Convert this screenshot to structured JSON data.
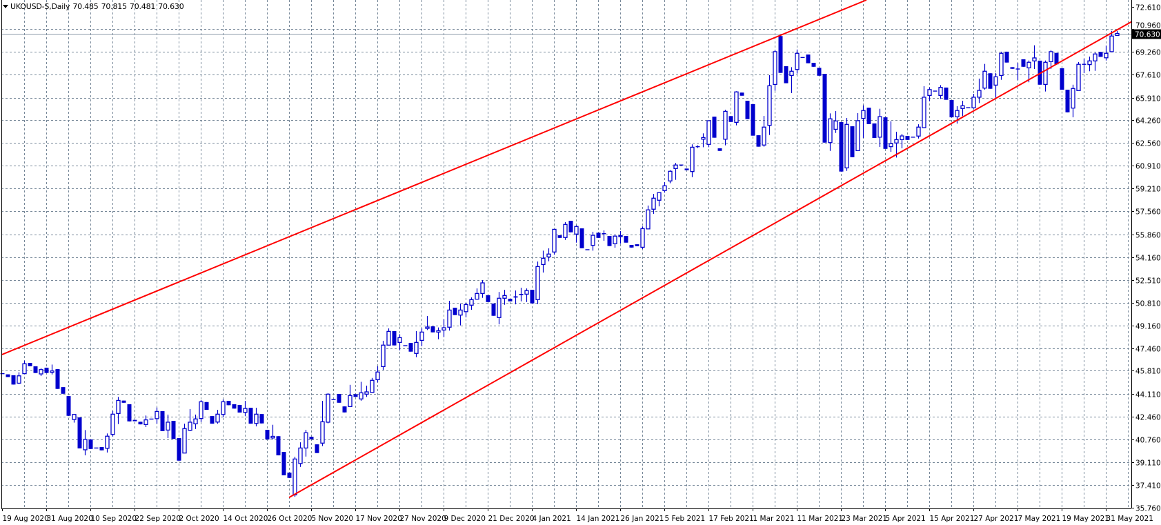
{
  "title": {
    "symbol_timeframe": "UKOUSD-S,Daily",
    "open": "70.485",
    "high": "70.815",
    "low": "70.481",
    "close": "70.630"
  },
  "chart_data": {
    "type": "candlestick",
    "title": "UKOUSD-S,Daily",
    "ylim": [
      35.76,
      72.61
    ],
    "grid": true,
    "y_tick_labels": [
      "72.610",
      "70.960",
      "69.260",
      "67.610",
      "65.910",
      "64.260",
      "62.560",
      "60.910",
      "59.210",
      "57.560",
      "55.860",
      "54.160",
      "52.510",
      "50.810",
      "49.160",
      "47.460",
      "45.810",
      "44.110",
      "42.460",
      "40.760",
      "39.110",
      "37.410",
      "35.760"
    ],
    "x_tick_labels": [
      "19 Aug 2020",
      "31 Aug 2020",
      "10 Sep 2020",
      "22 Sep 2020",
      "2 Oct 2020",
      "14 Oct 2020",
      "26 Oct 2020",
      "5 Nov 2020",
      "17 Nov 2020",
      "27 Nov 2020",
      "9 Dec 2020",
      "21 Dec 2020",
      "4 Jan 2021",
      "14 Jan 2021",
      "26 Jan 2021",
      "5 Feb 2021",
      "17 Feb 2021",
      "1 Mar 2021",
      "11 Mar 2021",
      "23 Mar 2021",
      "5 Apr 2021",
      "15 Apr 2021",
      "27 Apr 2021",
      "7 May 2021",
      "19 May 2021",
      "31 May 2021"
    ],
    "x_tick_every_bars": 8,
    "current_price": "70.630",
    "colors": {
      "candle": "#0000cd",
      "trendline": "#ff0000",
      "grid": "#778899",
      "price_line": "#8a99a8",
      "price_box": "#000000"
    },
    "candle_fields": [
      "open",
      "high",
      "low",
      "close"
    ],
    "candles": [
      [
        45.6,
        45.62,
        45.58,
        45.6
      ],
      [
        45.55,
        45.55,
        45.35,
        45.35
      ],
      [
        45.48,
        45.48,
        44.8,
        44.8
      ],
      [
        44.9,
        45.7,
        44.84,
        45.44
      ],
      [
        45.6,
        46.56,
        45.6,
        46.33
      ],
      [
        46.39,
        46.39,
        46.15,
        46.15
      ],
      [
        46.14,
        46.14,
        45.65,
        45.65
      ],
      [
        45.58,
        46.0,
        45.43,
        45.9
      ],
      [
        46.04,
        46.04,
        45.65,
        45.65
      ],
      [
        45.7,
        46.27,
        45.54,
        45.8
      ],
      [
        45.94,
        45.94,
        44.48,
        44.48
      ],
      [
        44.61,
        44.61,
        44.12,
        44.12
      ],
      [
        43.95,
        43.95,
        42.5,
        42.5
      ],
      [
        42.23,
        42.64,
        42.0,
        42.6
      ],
      [
        42.38,
        42.38,
        40.1,
        40.1
      ],
      [
        40.0,
        41.45,
        39.59,
        40.76
      ],
      [
        40.76,
        40.76,
        40.06,
        40.06
      ],
      [
        40.13,
        40.15,
        40.11,
        40.13
      ],
      [
        40.2,
        40.2,
        39.96,
        39.96
      ],
      [
        40.11,
        41.2,
        39.8,
        41.0
      ],
      [
        41.13,
        42.85,
        40.98,
        42.62
      ],
      [
        42.67,
        43.89,
        41.89,
        43.63
      ],
      [
        43.62,
        43.62,
        43.46,
        43.46
      ],
      [
        43.35,
        43.35,
        42.09,
        42.09
      ],
      [
        42.2,
        42.2,
        42.1,
        42.1
      ],
      [
        42.06,
        42.06,
        41.87,
        41.87
      ],
      [
        41.86,
        42.52,
        41.67,
        42.2
      ],
      [
        42.26,
        42.28,
        42.24,
        42.26
      ],
      [
        42.29,
        43.11,
        41.92,
        42.82
      ],
      [
        42.84,
        42.84,
        41.37,
        41.37
      ],
      [
        41.45,
        42.59,
        40.86,
        42.03
      ],
      [
        42.13,
        42.13,
        40.8,
        40.8
      ],
      [
        40.86,
        40.86,
        39.2,
        39.2
      ],
      [
        39.76,
        41.92,
        39.76,
        41.56
      ],
      [
        41.43,
        42.99,
        41.37,
        42.03
      ],
      [
        41.91,
        42.59,
        41.53,
        42.27
      ],
      [
        42.3,
        43.65,
        42.04,
        43.53
      ],
      [
        43.51,
        43.51,
        42.94,
        42.94
      ],
      [
        42.48,
        42.48,
        41.92,
        41.92
      ],
      [
        42.04,
        42.94,
        41.92,
        42.62
      ],
      [
        42.6,
        43.7,
        42.38,
        43.53
      ],
      [
        43.6,
        43.6,
        43.28,
        43.28
      ],
      [
        43.35,
        43.35,
        43.03,
        43.03
      ],
      [
        43.3,
        43.3,
        42.74,
        42.74
      ],
      [
        42.75,
        43.6,
        42.47,
        43.04
      ],
      [
        43.09,
        43.09,
        41.92,
        41.92
      ],
      [
        41.94,
        43.09,
        41.72,
        42.62
      ],
      [
        42.63,
        42.63,
        41.94,
        41.94
      ],
      [
        41.47,
        41.47,
        40.76,
        40.76
      ],
      [
        40.87,
        41.84,
        40.77,
        40.99
      ],
      [
        41.0,
        41.0,
        39.59,
        39.59
      ],
      [
        39.84,
        39.84,
        38.12,
        38.12
      ],
      [
        38.32,
        38.32,
        37.93,
        37.93
      ],
      [
        36.68,
        39.49,
        36.54,
        39.32
      ],
      [
        38.99,
        40.55,
        38.74,
        40.13
      ],
      [
        40.13,
        41.47,
        39.5,
        41.25
      ],
      [
        40.96,
        40.96,
        40.77,
        40.77
      ],
      [
        40.4,
        40.4,
        39.76,
        39.76
      ],
      [
        40.49,
        43.6,
        40.27,
        42.06
      ],
      [
        42.03,
        44.16,
        41.94,
        44.09
      ],
      [
        43.7,
        43.72,
        43.68,
        43.7
      ],
      [
        44.11,
        44.11,
        43.46,
        43.46
      ],
      [
        43.19,
        43.19,
        42.75,
        42.75
      ],
      [
        43.18,
        44.78,
        43.14,
        43.99
      ],
      [
        44.09,
        44.09,
        43.89,
        43.89
      ],
      [
        43.74,
        45.0,
        43.61,
        44.19
      ],
      [
        44.09,
        44.72,
        43.89,
        44.26
      ],
      [
        44.22,
        45.29,
        44.19,
        45.11
      ],
      [
        45.16,
        46.14,
        44.96,
        45.72
      ],
      [
        46.12,
        48.02,
        45.88,
        47.7
      ],
      [
        47.7,
        48.93,
        47.7,
        48.71
      ],
      [
        48.73,
        48.73,
        47.68,
        47.68
      ],
      [
        47.9,
        48.5,
        47.32,
        48.25
      ],
      [
        47.66,
        47.68,
        47.64,
        47.66
      ],
      [
        47.86,
        47.86,
        47.22,
        47.22
      ],
      [
        47.09,
        48.73,
        46.81,
        47.9
      ],
      [
        48.05,
        48.93,
        47.62,
        48.66
      ],
      [
        48.93,
        49.84,
        48.81,
        49.03
      ],
      [
        49.08,
        49.08,
        48.64,
        48.64
      ],
      [
        48.66,
        49.0,
        48.13,
        48.76
      ],
      [
        48.81,
        49.6,
        48.3,
        48.98
      ],
      [
        49.02,
        50.96,
        48.77,
        50.28
      ],
      [
        50.45,
        50.45,
        49.91,
        49.91
      ],
      [
        49.91,
        50.76,
        49.15,
        50.28
      ],
      [
        50.16,
        50.82,
        49.74,
        50.69
      ],
      [
        50.64,
        51.21,
        50.3,
        51.05
      ],
      [
        51.08,
        51.87,
        51.05,
        51.5
      ],
      [
        51.5,
        52.48,
        51.18,
        52.28
      ],
      [
        51.37,
        51.37,
        50.87,
        50.87
      ],
      [
        50.76,
        50.76,
        49.86,
        49.86
      ],
      [
        49.73,
        51.61,
        49.23,
        51.15
      ],
      [
        51.15,
        51.77,
        50.67,
        51.35
      ],
      [
        51.11,
        51.11,
        50.92,
        50.92
      ],
      [
        51.29,
        51.72,
        50.7,
        51.2
      ],
      [
        51.47,
        51.92,
        50.92,
        51.38
      ],
      [
        51.45,
        51.87,
        50.87,
        51.71
      ],
      [
        51.77,
        51.77,
        50.77,
        50.77
      ],
      [
        51.05,
        53.85,
        50.72,
        53.48
      ],
      [
        53.63,
        54.65,
        53.04,
        54.09
      ],
      [
        54.19,
        54.82,
        53.87,
        54.4
      ],
      [
        54.55,
        56.22,
        54.35,
        56.22
      ],
      [
        55.78,
        55.78,
        55.59,
        55.59
      ],
      [
        55.62,
        56.75,
        55.44,
        56.58
      ],
      [
        56.85,
        56.85,
        56.0,
        56.0
      ],
      [
        55.87,
        56.51,
        55.24,
        56.43
      ],
      [
        56.29,
        56.29,
        54.83,
        54.83
      ],
      [
        54.72,
        54.74,
        54.7,
        54.72
      ],
      [
        55.04,
        56.04,
        54.65,
        55.78
      ],
      [
        55.97,
        55.97,
        55.59,
        55.59
      ],
      [
        55.87,
        56.14,
        55.38,
        55.9
      ],
      [
        55.73,
        55.73,
        54.99,
        54.99
      ],
      [
        55.16,
        55.83,
        54.87,
        55.72
      ],
      [
        55.68,
        56.09,
        55.16,
        55.75
      ],
      [
        55.73,
        55.73,
        55.24,
        55.24
      ],
      [
        55.07,
        55.07,
        54.88,
        54.88
      ],
      [
        55.12,
        55.12,
        54.98,
        54.98
      ],
      [
        54.9,
        56.43,
        54.77,
        56.27
      ],
      [
        56.25,
        57.97,
        56.25,
        57.65
      ],
      [
        57.7,
        58.83,
        57.36,
        58.51
      ],
      [
        58.36,
        58.92,
        57.91,
        58.92
      ],
      [
        59.07,
        59.69,
        58.92,
        59.42
      ],
      [
        59.78,
        60.57,
        59.61,
        60.49
      ],
      [
        60.69,
        61.11,
        59.86,
        60.95
      ],
      [
        60.95,
        60.97,
        60.93,
        60.95
      ],
      [
        60.69,
        60.69,
        60.57,
        60.57
      ],
      [
        60.47,
        62.47,
        60.06,
        62.26
      ],
      [
        62.3,
        62.4,
        62.2,
        62.3
      ],
      [
        62.85,
        63.28,
        62.26,
        62.97
      ],
      [
        62.47,
        64.21,
        62.26,
        64.21
      ],
      [
        64.51,
        64.51,
        62.96,
        62.96
      ],
      [
        62.18,
        62.18,
        61.99,
        61.99
      ],
      [
        62.85,
        65.02,
        62.4,
        64.9
      ],
      [
        64.55,
        64.55,
        64.12,
        64.12
      ],
      [
        64.09,
        66.38,
        63.87,
        66.33
      ],
      [
        66.28,
        66.28,
        66.05,
        66.05
      ],
      [
        65.68,
        65.68,
        64.33,
        64.33
      ],
      [
        65.43,
        65.43,
        63.11,
        63.11
      ],
      [
        63.14,
        63.14,
        62.3,
        62.3
      ],
      [
        62.42,
        64.56,
        62.3,
        63.74
      ],
      [
        63.87,
        67.56,
        63.16,
        66.78
      ],
      [
        66.88,
        69.42,
        66.41,
        69.29
      ],
      [
        70.44,
        70.5,
        67.73,
        67.73
      ],
      [
        68.22,
        68.22,
        66.97,
        66.97
      ],
      [
        67.54,
        68.15,
        66.24,
        67.85
      ],
      [
        67.98,
        69.45,
        67.68,
        69.17
      ],
      [
        68.86,
        68.88,
        68.84,
        68.86
      ],
      [
        69.08,
        69.08,
        68.44,
        68.44
      ],
      [
        68.47,
        68.47,
        68.18,
        68.18
      ],
      [
        68.1,
        68.1,
        67.52,
        67.52
      ],
      [
        67.66,
        67.66,
        62.6,
        62.6
      ],
      [
        62.6,
        64.75,
        61.99,
        64.35
      ],
      [
        63.58,
        64.92,
        63.31,
        64.19
      ],
      [
        64.11,
        64.11,
        60.47,
        60.47
      ],
      [
        60.74,
        64.41,
        60.52,
        63.94
      ],
      [
        63.8,
        63.8,
        61.53,
        61.53
      ],
      [
        62.01,
        64.77,
        62.0,
        64.21
      ],
      [
        64.38,
        65.34,
        62.94,
        64.96
      ],
      [
        65.17,
        65.17,
        63.96,
        63.96
      ],
      [
        64.01,
        64.01,
        62.94,
        62.94
      ],
      [
        63.0,
        65.09,
        62.28,
        64.51
      ],
      [
        64.46,
        64.46,
        62.14,
        62.14
      ],
      [
        62.3,
        64.17,
        61.92,
        62.52
      ],
      [
        62.57,
        63.4,
        61.5,
        62.82
      ],
      [
        62.82,
        63.24,
        62.18,
        63.09
      ],
      [
        63.09,
        63.09,
        62.8,
        62.8
      ],
      [
        63.0,
        63.02,
        62.98,
        63.0
      ],
      [
        63.08,
        63.95,
        62.9,
        63.74
      ],
      [
        63.7,
        66.75,
        63.7,
        65.94
      ],
      [
        66.07,
        66.66,
        65.65,
        66.5
      ],
      [
        66.39,
        66.41,
        66.37,
        66.39
      ],
      [
        66.07,
        66.83,
        65.82,
        66.66
      ],
      [
        66.65,
        66.65,
        65.75,
        65.75
      ],
      [
        65.73,
        65.73,
        64.46,
        64.46
      ],
      [
        64.5,
        65.28,
        64.0,
        64.96
      ],
      [
        65.11,
        65.68,
        64.55,
        65.31
      ],
      [
        65.17,
        65.19,
        65.15,
        65.17
      ],
      [
        65.16,
        66.19,
        65.1,
        65.94
      ],
      [
        65.94,
        67.31,
        65.51,
        66.44
      ],
      [
        66.61,
        68.39,
        66.5,
        67.85
      ],
      [
        67.7,
        67.7,
        66.56,
        66.56
      ],
      [
        66.83,
        67.71,
        65.9,
        67.44
      ],
      [
        67.54,
        69.29,
        67.22,
        69.17
      ],
      [
        69.29,
        69.29,
        68.49,
        68.49
      ],
      [
        68.15,
        68.15,
        68.03,
        68.03
      ],
      [
        68.05,
        68.47,
        67.19,
        67.98
      ],
      [
        68.73,
        68.73,
        68.18,
        68.18
      ],
      [
        68.1,
        68.64,
        67.04,
        68.51
      ],
      [
        68.61,
        69.76,
        68.02,
        68.83
      ],
      [
        68.63,
        68.63,
        66.86,
        66.86
      ],
      [
        66.88,
        68.64,
        66.36,
        68.51
      ],
      [
        68.56,
        69.4,
        68.02,
        69.29
      ],
      [
        69.2,
        69.2,
        68.36,
        68.36
      ],
      [
        68.07,
        68.07,
        66.49,
        66.49
      ],
      [
        66.49,
        66.49,
        64.83,
        64.83
      ],
      [
        65.14,
        66.86,
        64.46,
        66.58
      ],
      [
        66.43,
        68.53,
        66.43,
        68.36
      ],
      [
        68.36,
        68.78,
        67.71,
        68.36
      ],
      [
        68.34,
        68.93,
        67.85,
        68.61
      ],
      [
        68.61,
        69.23,
        67.88,
        69.12
      ],
      [
        69.27,
        69.27,
        68.91,
        68.91
      ],
      [
        68.84,
        69.74,
        68.64,
        69.17
      ],
      [
        69.29,
        70.82,
        69.29,
        70.44
      ],
      [
        70.485,
        70.815,
        70.481,
        70.63
      ]
    ],
    "trendlines": [
      {
        "points": [
          {
            "bar": 0,
            "price": 47.01
          },
          {
            "bar": 141,
            "price": 70.49
          }
        ],
        "extend_left": true,
        "extend_right": true
      },
      {
        "points": [
          {
            "bar": 52,
            "price": 36.49
          },
          {
            "bar": 204.6,
            "price": 71.48
          }
        ],
        "extend_left": false,
        "extend_right": true
      }
    ]
  }
}
